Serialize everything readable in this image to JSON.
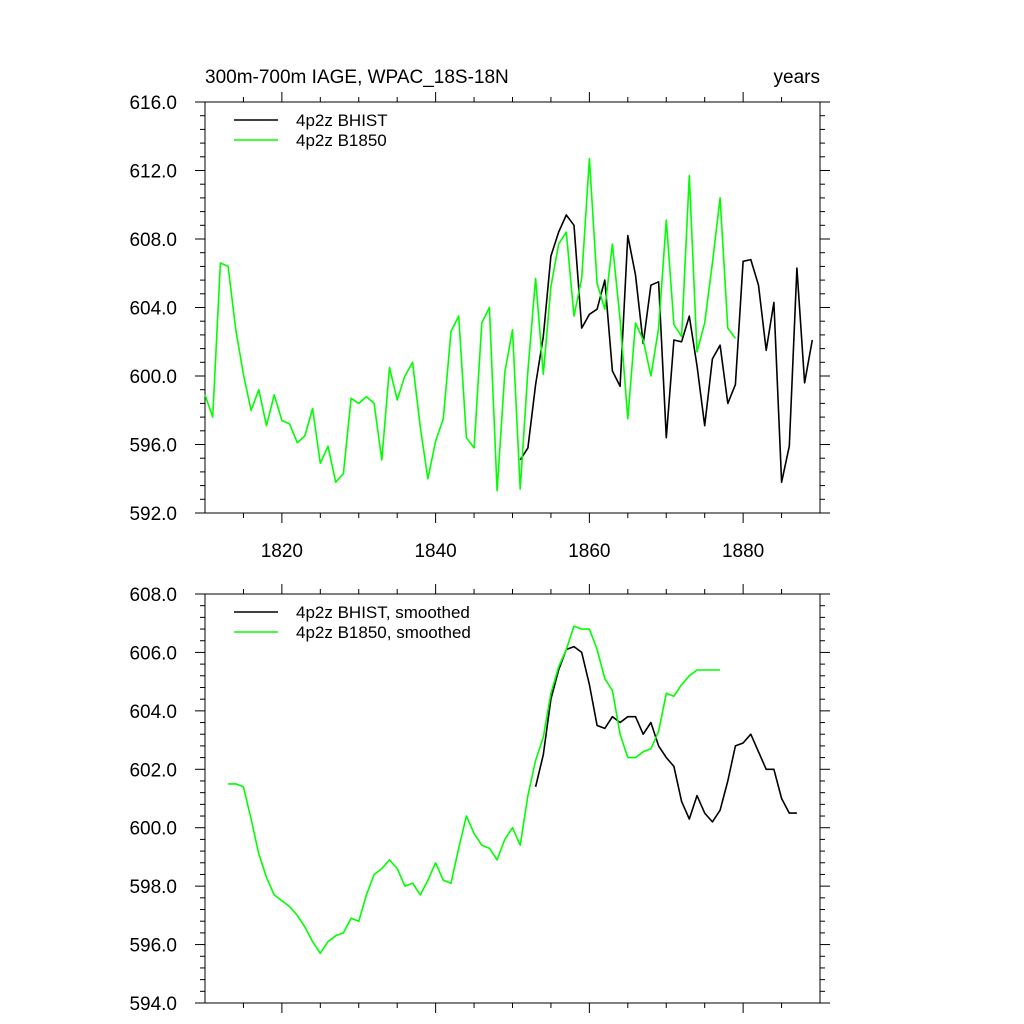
{
  "figure": {
    "title_left": "300m-700m IAGE, WPAC_18S-18N",
    "title_right": "years"
  },
  "chart_data": [
    {
      "type": "line",
      "title": "300m-700m IAGE, WPAC_18S-18N",
      "units": "years",
      "xlim": [
        1810,
        1890
      ],
      "ylim": [
        592.0,
        616.0
      ],
      "x_ticks": [
        1820,
        1840,
        1860,
        1880
      ],
      "y_ticks": [
        "592.0",
        "596.0",
        "600.0",
        "604.0",
        "608.0",
        "612.0",
        "616.0"
      ],
      "legend_position": "top-left",
      "series": [
        {
          "name": "4p2z BHIST",
          "color": "#000000",
          "x": [
            1851,
            1852,
            1853,
            1854,
            1855,
            1856,
            1857,
            1858,
            1859,
            1860,
            1861,
            1862,
            1863,
            1864,
            1865,
            1866,
            1867,
            1868,
            1869,
            1870,
            1871,
            1872,
            1873,
            1874,
            1875,
            1876,
            1877,
            1878,
            1879,
            1880,
            1881,
            1882,
            1883,
            1884,
            1885,
            1886,
            1887,
            1888,
            1889
          ],
          "y": [
            595.1,
            595.8,
            599.5,
            602.3,
            607.0,
            608.4,
            609.4,
            608.8,
            602.8,
            603.6,
            603.9,
            605.6,
            600.3,
            599.4,
            608.2,
            605.9,
            601.9,
            605.3,
            605.5,
            596.4,
            602.1,
            602.0,
            603.5,
            600.6,
            597.1,
            601.0,
            601.8,
            598.4,
            599.5,
            606.7,
            606.8,
            605.3,
            601.5,
            604.3,
            593.8,
            595.9,
            606.3,
            599.6,
            602.1
          ]
        },
        {
          "name": "4p2z B1850",
          "color": "#00ff00",
          "x": [
            1810,
            1811,
            1812,
            1813,
            1814,
            1815,
            1816,
            1817,
            1818,
            1819,
            1820,
            1821,
            1822,
            1823,
            1824,
            1825,
            1826,
            1827,
            1828,
            1829,
            1830,
            1831,
            1832,
            1833,
            1834,
            1835,
            1836,
            1837,
            1838,
            1839,
            1840,
            1841,
            1842,
            1843,
            1844,
            1845,
            1846,
            1847,
            1848,
            1849,
            1850,
            1851,
            1852,
            1853,
            1854,
            1855,
            1856,
            1857,
            1858,
            1859,
            1860,
            1861,
            1862,
            1863,
            1864,
            1865,
            1866,
            1867,
            1868,
            1869,
            1870,
            1871,
            1872,
            1873,
            1874,
            1875,
            1876,
            1877,
            1878,
            1879
          ],
          "y": [
            598.9,
            597.6,
            606.6,
            606.4,
            602.7,
            600.1,
            598.0,
            599.2,
            597.1,
            598.9,
            597.4,
            597.2,
            596.1,
            596.5,
            598.1,
            594.9,
            595.9,
            593.8,
            594.3,
            598.7,
            598.4,
            598.8,
            598.4,
            595.1,
            600.5,
            598.6,
            600.0,
            600.8,
            597.0,
            594.0,
            596.2,
            597.5,
            602.6,
            603.5,
            596.4,
            595.8,
            603.1,
            604.0,
            593.3,
            600.2,
            602.7,
            593.4,
            600.3,
            605.7,
            600.1,
            605.2,
            607.7,
            608.4,
            603.5,
            605.7,
            612.7,
            605.4,
            603.9,
            607.7,
            603.3,
            597.5,
            603.1,
            602.1,
            600.0,
            602.8,
            609.1,
            603.0,
            602.3,
            611.7,
            601.4,
            603.1,
            606.6,
            610.4,
            602.8,
            602.2
          ]
        }
      ]
    },
    {
      "type": "line",
      "xlim": [
        1810,
        1890
      ],
      "ylim": [
        594.0,
        608.0
      ],
      "y_ticks": [
        "594.0",
        "596.0",
        "598.0",
        "600.0",
        "602.0",
        "604.0",
        "606.0",
        "608.0"
      ],
      "legend_position": "top-left",
      "series": [
        {
          "name": "4p2z BHIST, smoothed",
          "color": "#000000",
          "x": [
            1853,
            1854,
            1855,
            1856,
            1857,
            1858,
            1859,
            1860,
            1861,
            1862,
            1863,
            1864,
            1865,
            1866,
            1867,
            1868,
            1869,
            1870,
            1871,
            1872,
            1873,
            1874,
            1875,
            1876,
            1877,
            1878,
            1879,
            1880,
            1881,
            1882,
            1883,
            1884,
            1885,
            1886,
            1887
          ],
          "y": [
            601.4,
            602.5,
            604.4,
            605.4,
            606.1,
            606.2,
            606.0,
            604.9,
            603.5,
            603.4,
            603.8,
            603.6,
            603.8,
            603.8,
            603.2,
            603.6,
            602.8,
            602.4,
            602.1,
            600.9,
            600.3,
            601.1,
            600.5,
            600.2,
            600.6,
            601.6,
            602.8,
            602.9,
            603.2,
            602.6,
            602.0,
            602.0,
            601.0,
            600.5,
            600.5
          ]
        },
        {
          "name": "4p2z B1850, smoothed",
          "color": "#00ff00",
          "x": [
            1813,
            1814,
            1815,
            1816,
            1817,
            1818,
            1819,
            1820,
            1821,
            1822,
            1823,
            1824,
            1825,
            1826,
            1827,
            1828,
            1829,
            1830,
            1831,
            1832,
            1833,
            1834,
            1835,
            1836,
            1837,
            1838,
            1839,
            1840,
            1841,
            1842,
            1843,
            1844,
            1845,
            1846,
            1847,
            1848,
            1849,
            1850,
            1851,
            1852,
            1853,
            1854,
            1855,
            1856,
            1857,
            1858,
            1859,
            1860,
            1861,
            1862,
            1863,
            1864,
            1865,
            1866,
            1867,
            1868,
            1869,
            1870,
            1871,
            1872,
            1873,
            1874,
            1875,
            1876,
            1877
          ],
          "y": [
            601.5,
            601.5,
            601.4,
            600.3,
            599.1,
            598.3,
            597.7,
            597.5,
            597.3,
            597.0,
            596.6,
            596.1,
            595.7,
            596.1,
            596.3,
            596.4,
            596.9,
            596.8,
            597.7,
            598.4,
            598.6,
            598.9,
            598.6,
            598.0,
            598.1,
            597.7,
            598.2,
            598.8,
            598.2,
            598.1,
            599.3,
            600.4,
            599.8,
            599.4,
            599.3,
            598.9,
            599.6,
            600.0,
            599.4,
            601.1,
            602.3,
            603.1,
            604.6,
            605.5,
            606.1,
            606.9,
            606.8,
            606.8,
            606.1,
            605.1,
            604.7,
            603.2,
            602.4,
            602.4,
            602.6,
            602.7,
            603.3,
            604.6,
            604.5,
            604.9,
            605.2,
            605.4,
            605.4,
            605.4,
            605.4
          ]
        }
      ]
    }
  ]
}
